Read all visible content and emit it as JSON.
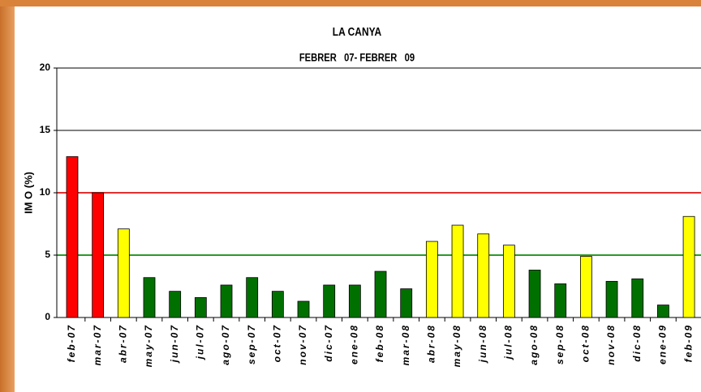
{
  "chart_data": {
    "type": "bar",
    "title": "LA CANYA",
    "subtitle": "FEBRER   07- FEBRER   09",
    "y_label": "IM O (%)",
    "categories": [
      "feb-07",
      "mar-07",
      "abr-07",
      "may-07",
      "jun-07",
      "jul-07",
      "ago-07",
      "sep-07",
      "oct-07",
      "nov-07",
      "dic-07",
      "ene-08",
      "feb-08",
      "mar-08",
      "abr-08",
      "may-08",
      "jun-08",
      "jul-08",
      "ago-08",
      "sep-08",
      "oct-08",
      "nov-08",
      "dic-08",
      "ene-09",
      "feb-09"
    ],
    "values": [
      12.9,
      10,
      7.1,
      3.2,
      2.1,
      1.6,
      2.6,
      3.2,
      2.1,
      1.3,
      2.6,
      2.6,
      3.7,
      2.3,
      6.1,
      7.4,
      6.7,
      5.8,
      3.8,
      2.7,
      4.9,
      2.9,
      3.1,
      1.0,
      8.1
    ],
    "colors": [
      "#ff0000",
      "#ff0000",
      "#ffff00",
      "#007000",
      "#007000",
      "#007000",
      "#007000",
      "#007000",
      "#007000",
      "#007000",
      "#007000",
      "#007000",
      "#007000",
      "#007000",
      "#ffff00",
      "#ffff00",
      "#ffff00",
      "#ffff00",
      "#007000",
      "#007000",
      "#ffff00",
      "#007000",
      "#007000",
      "#007000",
      "#ffff00"
    ],
    "ylim": [
      0,
      20
    ],
    "yticks": [
      0,
      5,
      10,
      15,
      20
    ],
    "grid": true,
    "reference_lines": [
      {
        "value": 10,
        "color": "#e03030"
      },
      {
        "value": 5,
        "color": "#2a9a2a"
      }
    ]
  }
}
